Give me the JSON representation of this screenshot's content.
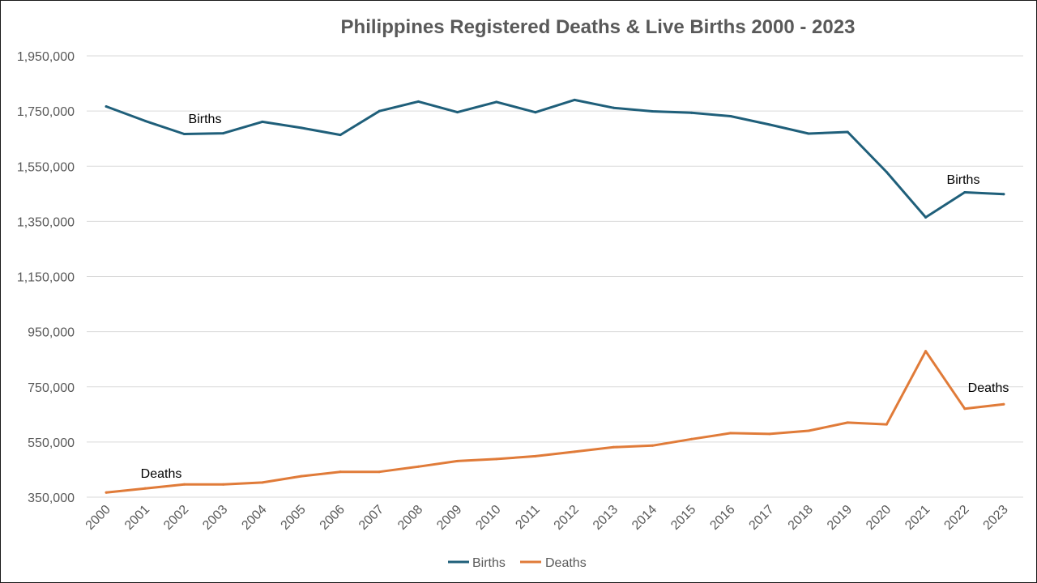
{
  "chart_data": {
    "type": "line",
    "title": "Philippines Registered Deaths & Live Births 2000 - 2023",
    "xlabel": "",
    "ylabel": "",
    "categories": [
      "2000",
      "2001",
      "2002",
      "2003",
      "2004",
      "2005",
      "2006",
      "2007",
      "2008",
      "2009",
      "2010",
      "2011",
      "2012",
      "2013",
      "2014",
      "2015",
      "2016",
      "2017",
      "2018",
      "2019",
      "2020",
      "2021",
      "2022",
      "2023"
    ],
    "ylim": [
      350000,
      1950000
    ],
    "yticks": [
      "1,950,000",
      "1,750,000",
      "1,550,000",
      "1,350,000",
      "1,150,000",
      "950,000",
      "750,000",
      "550,000",
      "350,000"
    ],
    "ytick_values": [
      1950000,
      1750000,
      1550000,
      1350000,
      1150000,
      950000,
      750000,
      550000,
      350000
    ],
    "grid": true,
    "legend": "bottom",
    "series": [
      {
        "name": "Births",
        "color": "#1F5F7A",
        "values": [
          1766440,
          1714093,
          1666773,
          1669442,
          1710994,
          1688918,
          1663544,
          1749878,
          1784316,
          1745585,
          1782981,
          1745267,
          1790367,
          1761602,
          1748857,
          1743574,
          1731289,
          1700618,
          1668120,
          1673923,
          1528684,
          1364492,
          1455393,
          1448568
        ]
      },
      {
        "name": "Deaths",
        "color": "#E07B39",
        "values": [
          366931,
          381834,
          396297,
          396331,
          403191,
          426054,
          441956,
          441880,
          460723,
          480820,
          488265,
          498486,
          514745,
          531280,
          536999,
          560605,
          582183,
          579237,
          590709,
          620414,
          613936,
          879429,
          670811,
          686755
        ]
      }
    ],
    "annotations": [
      {
        "text": "Births",
        "series": "Births"
      },
      {
        "text": "Births",
        "series": "Births"
      },
      {
        "text": "Deaths",
        "series": "Deaths"
      },
      {
        "text": "Deaths",
        "series": "Deaths"
      }
    ]
  }
}
